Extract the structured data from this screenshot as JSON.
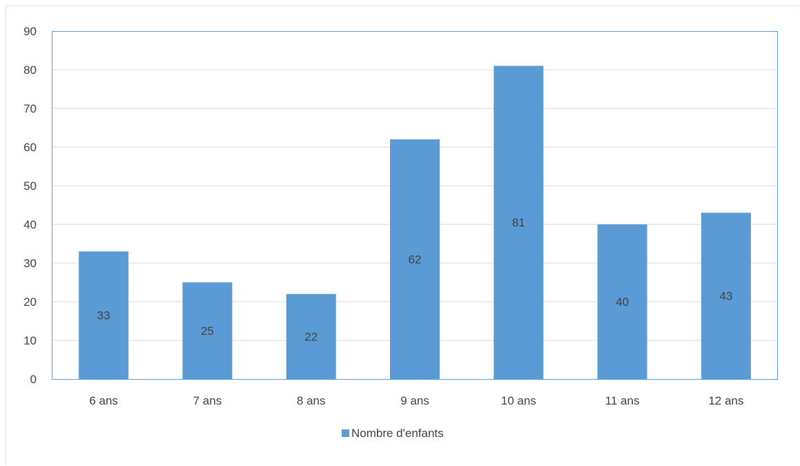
{
  "chart_data": {
    "type": "bar",
    "title": "",
    "xlabel": "",
    "ylabel": "",
    "categories": [
      "6 ans",
      "7 ans",
      "8 ans",
      "9 ans",
      "10 ans",
      "11 ans",
      "12 ans"
    ],
    "series": [
      {
        "name": "Nombre d'enfants",
        "values": [
          33,
          25,
          22,
          62,
          81,
          40,
          43
        ],
        "color": "#5b9bd5"
      }
    ],
    "data_labels": [
      "33",
      "25",
      "22",
      "62",
      "81",
      "40",
      "43"
    ],
    "ylim": [
      0,
      90
    ],
    "yticks": [
      "0",
      "10",
      "20",
      "30",
      "40",
      "50",
      "60",
      "70",
      "80",
      "90"
    ],
    "grid": true,
    "legend_position": "bottom",
    "plot_border_color": "#5b9bd5",
    "gridline_color": "#d9d9d9"
  }
}
